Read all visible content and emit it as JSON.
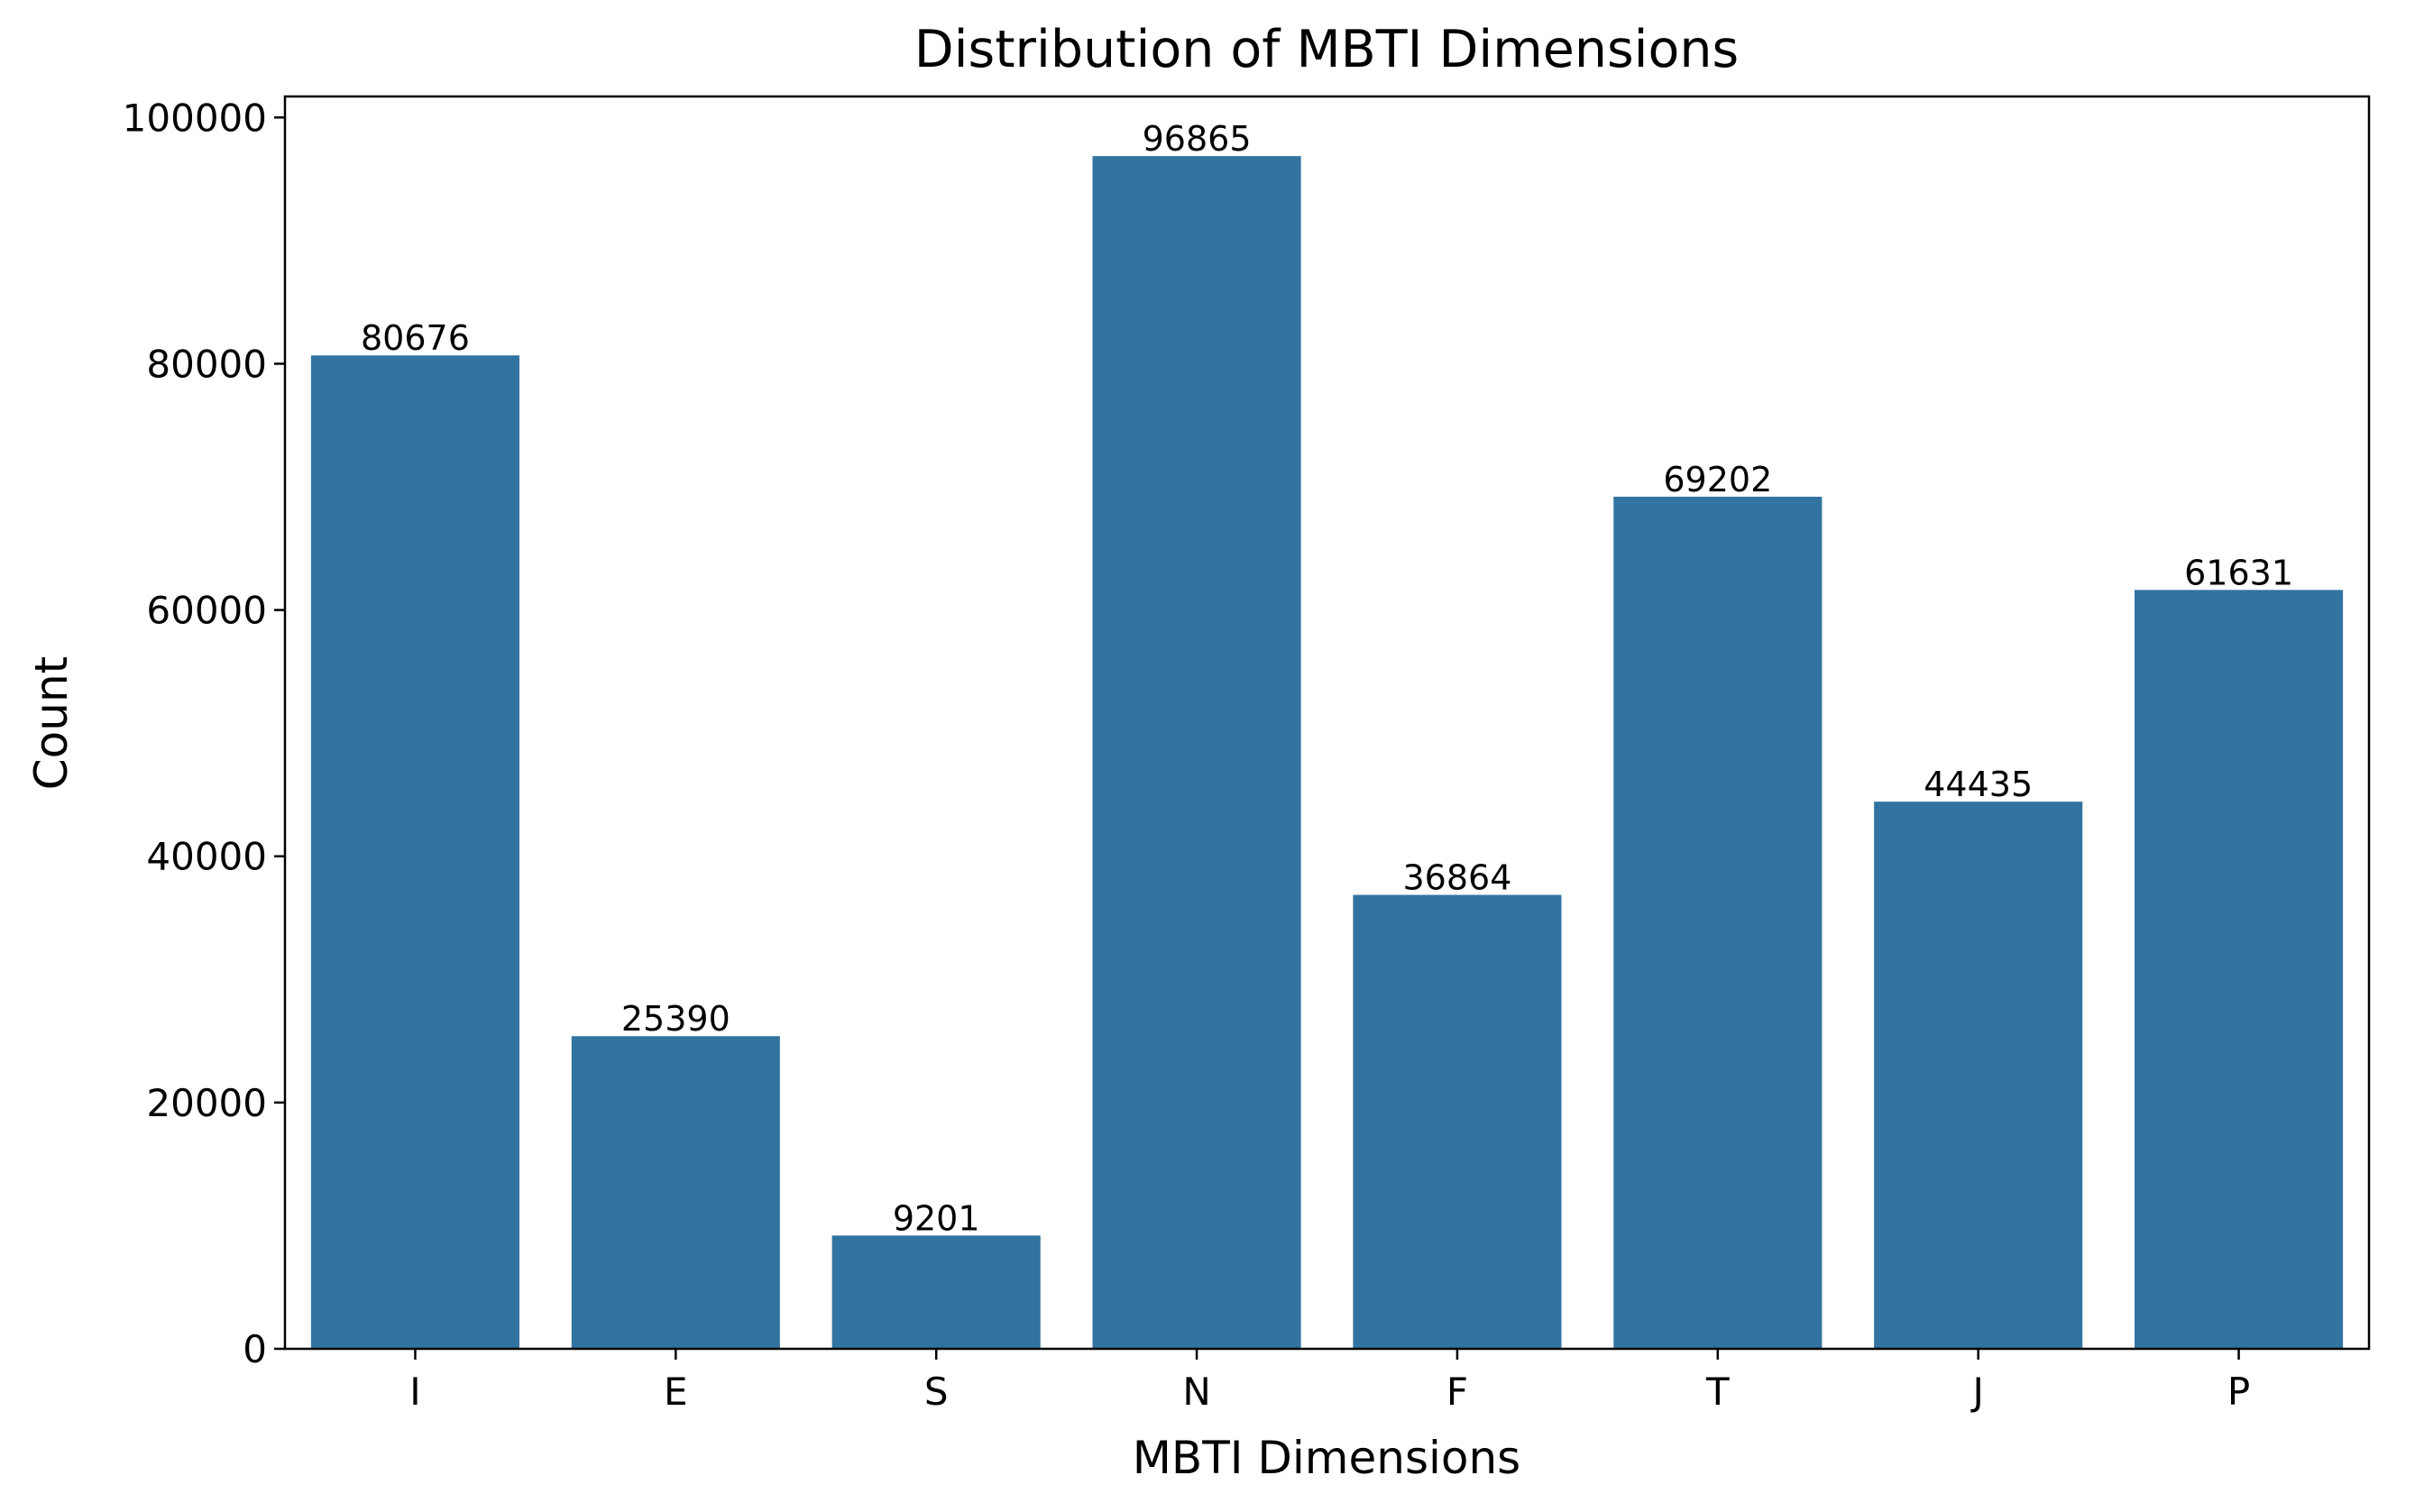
{
  "chart_data": {
    "type": "bar",
    "title": "Distribution of MBTI Dimensions",
    "xlabel": "MBTI Dimensions",
    "ylabel": "Count",
    "categories": [
      "I",
      "E",
      "S",
      "N",
      "F",
      "T",
      "J",
      "P"
    ],
    "values": [
      80676,
      25390,
      9201,
      96865,
      36864,
      69202,
      44435,
      61631
    ],
    "data_labels": [
      "80676",
      "25390",
      "9201",
      "96865",
      "36864",
      "69202",
      "44435",
      "61631"
    ],
    "ylim": [
      0,
      101706
    ],
    "yticks": [
      0,
      20000,
      40000,
      60000,
      80000,
      100000
    ],
    "ytick_labels": [
      "0",
      "20000",
      "40000",
      "60000",
      "80000",
      "100000"
    ],
    "grid": false,
    "legend": "none",
    "bar_color": "#3274a1"
  }
}
